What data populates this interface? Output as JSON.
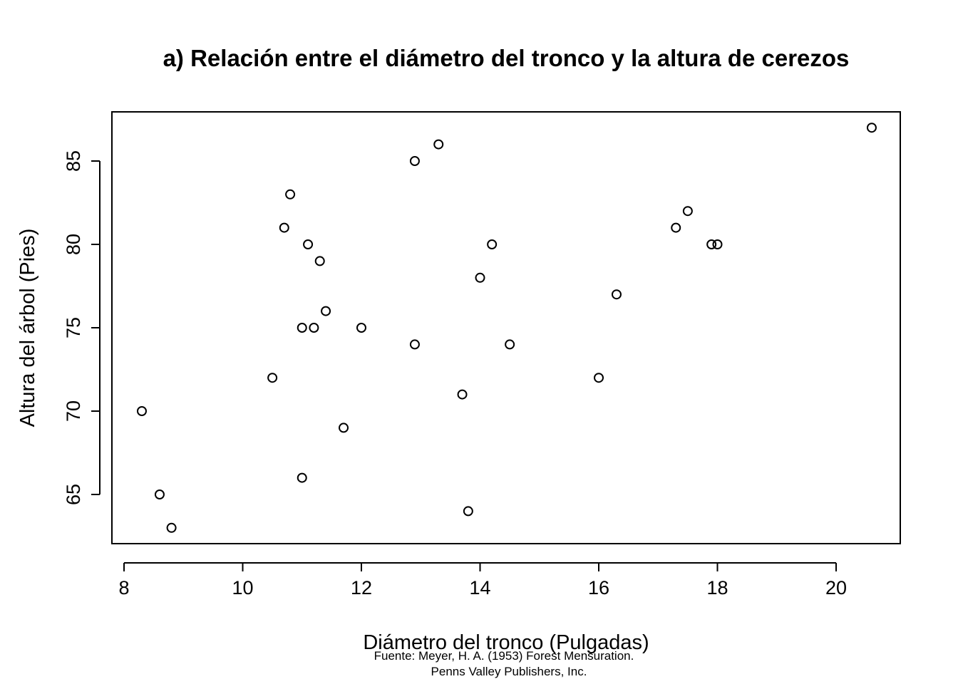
{
  "chart_data": {
    "type": "scatter",
    "title": "a) Relación entre el diámetro del tronco y la altura de cerezos",
    "xlabel": "Diámetro del tronco (Pulgadas)",
    "ylabel": "Altura del árbol (Pies)",
    "xlim": [
      8.0,
      21.0
    ],
    "ylim": [
      62.0,
      88.0
    ],
    "xticks": [
      8,
      10,
      12,
      14,
      16,
      18,
      20
    ],
    "yticks": [
      65,
      70,
      75,
      80,
      85
    ],
    "grid": false,
    "marker": "open-circle",
    "points": [
      {
        "x": 8.3,
        "y": 70
      },
      {
        "x": 8.6,
        "y": 65
      },
      {
        "x": 8.8,
        "y": 63
      },
      {
        "x": 10.5,
        "y": 72
      },
      {
        "x": 10.7,
        "y": 81
      },
      {
        "x": 10.8,
        "y": 83
      },
      {
        "x": 11.0,
        "y": 66
      },
      {
        "x": 11.0,
        "y": 75
      },
      {
        "x": 11.1,
        "y": 80
      },
      {
        "x": 11.2,
        "y": 75
      },
      {
        "x": 11.3,
        "y": 79
      },
      {
        "x": 11.4,
        "y": 76
      },
      {
        "x": 11.7,
        "y": 69
      },
      {
        "x": 12.0,
        "y": 75
      },
      {
        "x": 12.9,
        "y": 74
      },
      {
        "x": 12.9,
        "y": 85
      },
      {
        "x": 13.3,
        "y": 86
      },
      {
        "x": 13.7,
        "y": 71
      },
      {
        "x": 13.8,
        "y": 64
      },
      {
        "x": 14.0,
        "y": 78
      },
      {
        "x": 14.2,
        "y": 80
      },
      {
        "x": 14.5,
        "y": 74
      },
      {
        "x": 16.0,
        "y": 72
      },
      {
        "x": 16.3,
        "y": 77
      },
      {
        "x": 17.3,
        "y": 81
      },
      {
        "x": 17.5,
        "y": 82
      },
      {
        "x": 17.9,
        "y": 80
      },
      {
        "x": 18.0,
        "y": 80
      },
      {
        "x": 20.6,
        "y": 87
      }
    ],
    "caption_lines": [
      "Fuente: Meyer, H. A. (1953) Forest Mensuration.",
      "Penns Valley Publishers, Inc."
    ]
  }
}
